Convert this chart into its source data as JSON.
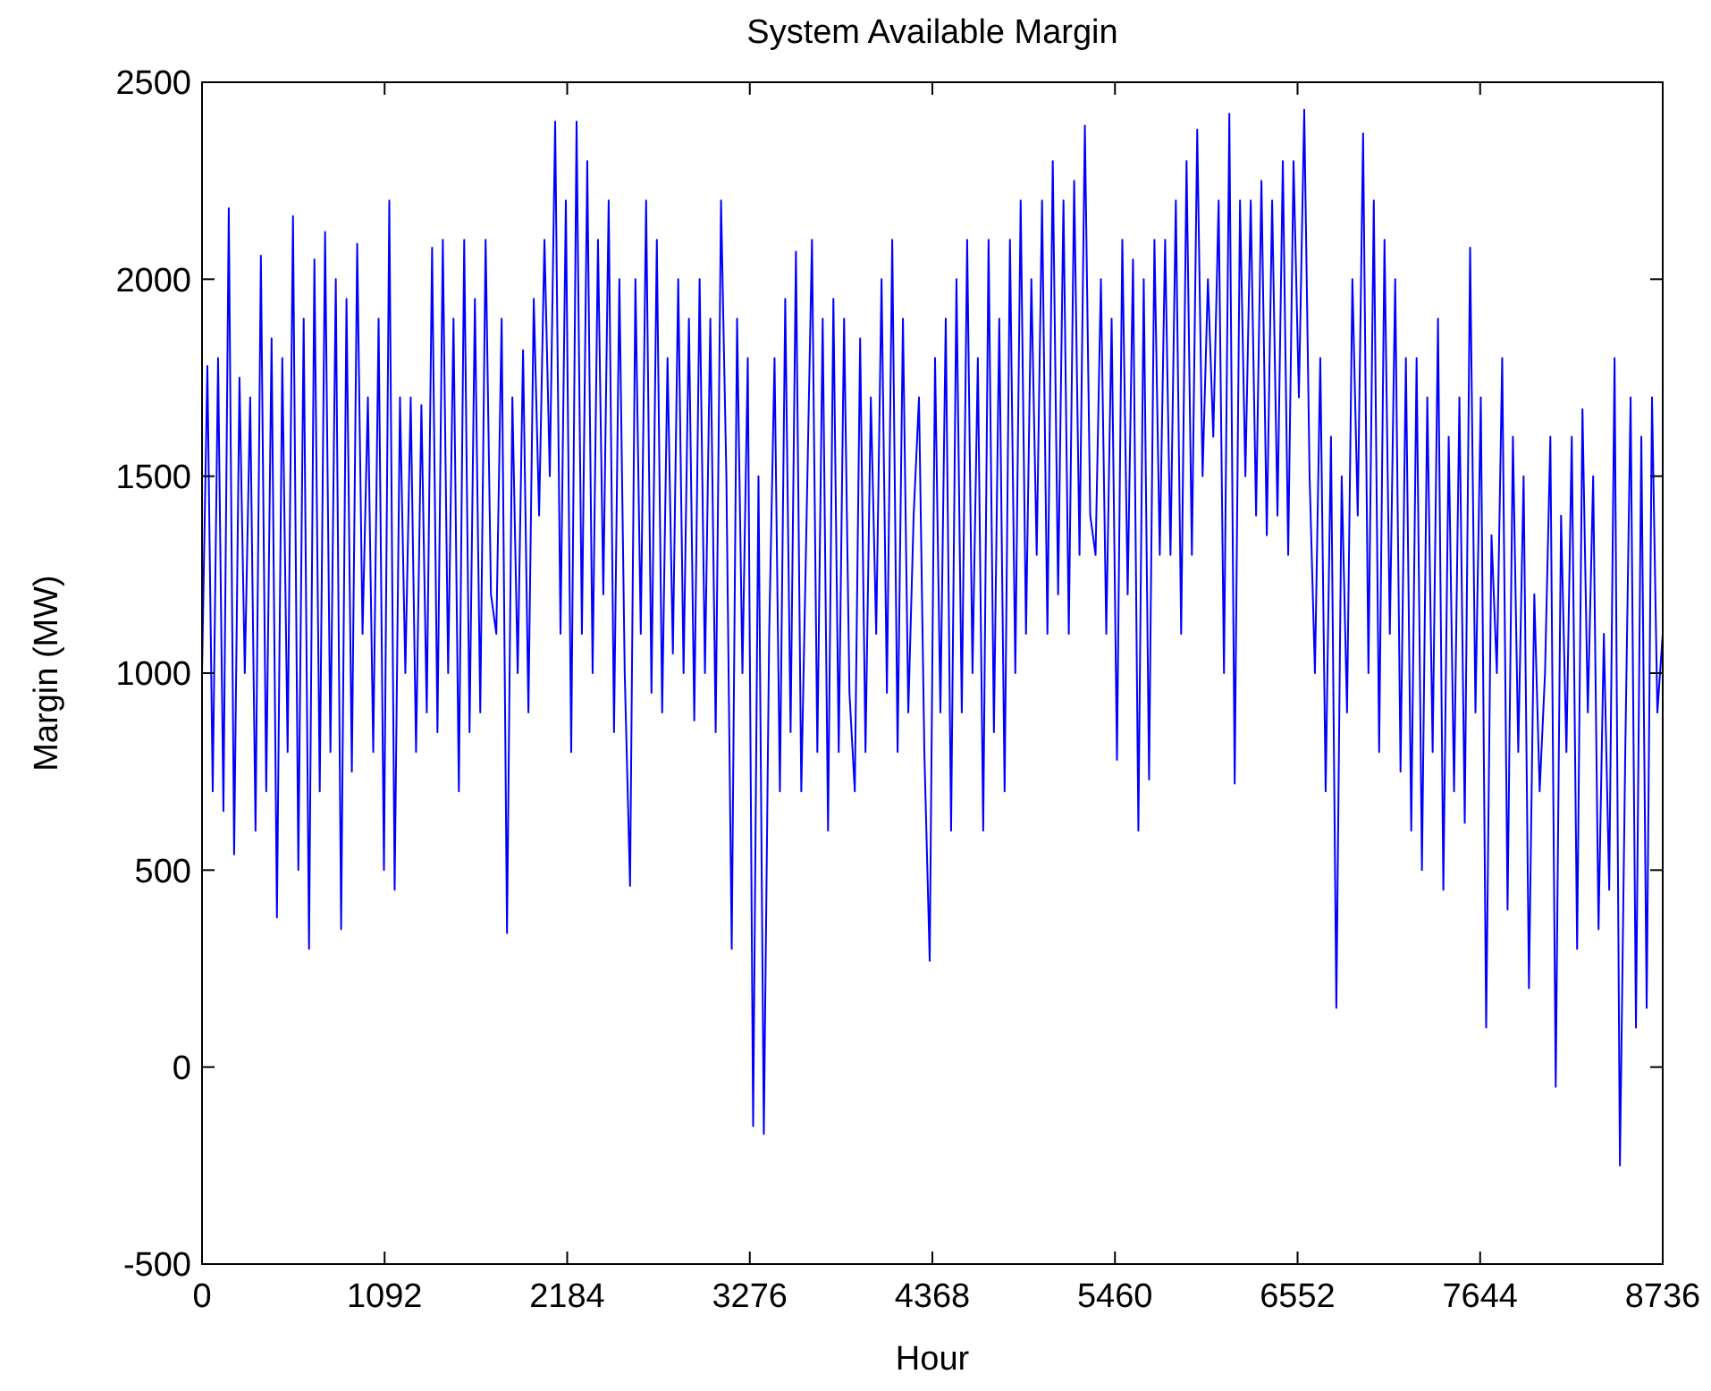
{
  "chart_data": {
    "type": "line",
    "title": "System Available Margin",
    "xlabel": "Hour",
    "ylabel": "Margin (MW)",
    "xlim": [
      0,
      8736
    ],
    "xticks": [
      0,
      1092,
      2184,
      3276,
      4368,
      5460,
      6552,
      7644,
      8736
    ],
    "ylim": [
      -500,
      2500
    ],
    "yticks": [
      -500,
      0,
      500,
      1000,
      1500,
      2000,
      2500
    ],
    "grid": false,
    "series": [
      {
        "color": "#0000ff",
        "x": [
          0,
          32,
          64,
          96,
          128,
          160,
          192,
          224,
          256,
          288,
          320,
          352,
          384,
          416,
          448,
          480,
          512,
          544,
          576,
          608,
          640,
          672,
          704,
          736,
          768,
          800,
          832,
          864,
          896,
          928,
          960,
          992,
          1024,
          1056,
          1088,
          1120,
          1152,
          1184,
          1216,
          1248,
          1280,
          1312,
          1344,
          1376,
          1408,
          1440,
          1472,
          1504,
          1536,
          1568,
          1600,
          1632,
          1664,
          1696,
          1728,
          1760,
          1792,
          1824,
          1856,
          1888,
          1920,
          1952,
          1984,
          2016,
          2048,
          2080,
          2112,
          2144,
          2176,
          2208,
          2240,
          2272,
          2304,
          2336,
          2368,
          2400,
          2432,
          2464,
          2496,
          2528,
          2560,
          2592,
          2624,
          2656,
          2688,
          2720,
          2752,
          2784,
          2816,
          2848,
          2880,
          2912,
          2944,
          2976,
          3008,
          3040,
          3072,
          3104,
          3136,
          3168,
          3200,
          3232,
          3264,
          3296,
          3328,
          3360,
          3392,
          3424,
          3456,
          3488,
          3520,
          3552,
          3584,
          3616,
          3648,
          3680,
          3712,
          3744,
          3776,
          3808,
          3840,
          3872,
          3904,
          3936,
          3968,
          4000,
          4032,
          4064,
          4096,
          4128,
          4160,
          4192,
          4224,
          4256,
          4288,
          4320,
          4352,
          4384,
          4416,
          4448,
          4480,
          4512,
          4544,
          4576,
          4608,
          4640,
          4672,
          4704,
          4736,
          4768,
          4800,
          4832,
          4864,
          4896,
          4928,
          4960,
          4992,
          5024,
          5056,
          5088,
          5120,
          5152,
          5184,
          5216,
          5248,
          5280,
          5312,
          5344,
          5376,
          5408,
          5440,
          5472,
          5504,
          5536,
          5568,
          5600,
          5632,
          5664,
          5696,
          5728,
          5760,
          5792,
          5824,
          5856,
          5888,
          5920,
          5952,
          5984,
          6016,
          6048,
          6080,
          6112,
          6144,
          6176,
          6208,
          6240,
          6272,
          6304,
          6336,
          6368,
          6400,
          6432,
          6464,
          6496,
          6528,
          6560,
          6592,
          6624,
          6656,
          6688,
          6720,
          6752,
          6784,
          6816,
          6848,
          6880,
          6912,
          6944,
          6976,
          7008,
          7040,
          7072,
          7104,
          7136,
          7168,
          7200,
          7232,
          7264,
          7296,
          7328,
          7360,
          7392,
          7424,
          7456,
          7488,
          7520,
          7552,
          7584,
          7616,
          7648,
          7680,
          7712,
          7744,
          7776,
          7808,
          7840,
          7872,
          7904,
          7936,
          7968,
          8000,
          8032,
          8064,
          8096,
          8128,
          8160,
          8192,
          8224,
          8256,
          8288,
          8320,
          8352,
          8384,
          8416,
          8448,
          8480,
          8512,
          8544,
          8576,
          8608,
          8640,
          8672,
          8704,
          8736
        ],
        "values": [
          1000,
          1780,
          700,
          1800,
          650,
          2180,
          540,
          1750,
          1000,
          1700,
          600,
          2060,
          700,
          1850,
          380,
          1800,
          800,
          2160,
          500,
          1900,
          300,
          2050,
          700,
          2120,
          800,
          2000,
          350,
          1950,
          750,
          2090,
          1100,
          1700,
          800,
          1900,
          500,
          2200,
          450,
          1700,
          1000,
          1700,
          800,
          1680,
          900,
          2080,
          850,
          2100,
          1000,
          1900,
          700,
          2100,
          850,
          1950,
          900,
          2100,
          1200,
          1100,
          1900,
          340,
          1700,
          1000,
          1820,
          900,
          1950,
          1400,
          2100,
          1500,
          2400,
          1100,
          2200,
          800,
          2400,
          1100,
          2300,
          1000,
          2100,
          1200,
          2200,
          850,
          2000,
          1000,
          460,
          2000,
          1100,
          2200,
          950,
          2100,
          900,
          1800,
          1050,
          2000,
          1000,
          1900,
          880,
          2000,
          1000,
          1900,
          850,
          2200,
          1500,
          300,
          1900,
          1000,
          1800,
          -150,
          1500,
          -170,
          1100,
          1800,
          700,
          1950,
          850,
          2070,
          700,
          1400,
          2100,
          800,
          1900,
          600,
          1950,
          800,
          1900,
          950,
          700,
          1850,
          800,
          1700,
          1100,
          2000,
          950,
          2100,
          800,
          1900,
          900,
          1400,
          1700,
          800,
          270,
          1800,
          900,
          1900,
          600,
          2000,
          900,
          2100,
          1000,
          1800,
          600,
          2100,
          850,
          1900,
          700,
          2100,
          1000,
          2200,
          1100,
          2000,
          1300,
          2200,
          1100,
          2300,
          1200,
          2200,
          1100,
          2250,
          1300,
          2390,
          1400,
          1300,
          2000,
          1100,
          1900,
          780,
          2100,
          1200,
          2050,
          600,
          2000,
          730,
          2100,
          1300,
          2100,
          1300,
          2200,
          1100,
          2300,
          1300,
          2380,
          1500,
          2000,
          1600,
          2200,
          1000,
          2420,
          720,
          2200,
          1500,
          2200,
          1400,
          2250,
          1350,
          2200,
          1400,
          2300,
          1300,
          2300,
          1700,
          2430,
          1500,
          1000,
          1800,
          700,
          1600,
          150,
          1500,
          900,
          2000,
          1400,
          2370,
          1000,
          2200,
          800,
          2100,
          1100,
          2000,
          750,
          1800,
          600,
          1800,
          500,
          1700,
          800,
          1900,
          450,
          1600,
          700,
          1700,
          620,
          2080,
          900,
          1700,
          100,
          1350,
          1000,
          1800,
          400,
          1600,
          800,
          1500,
          200,
          1200,
          700,
          1000,
          1600,
          -50,
          1400,
          800,
          1600,
          300,
          1670,
          900,
          1500,
          350,
          1100,
          450,
          1800,
          -250,
          800,
          1700,
          100,
          1600,
          150,
          1700,
          900,
          1100
        ]
      }
    ]
  }
}
